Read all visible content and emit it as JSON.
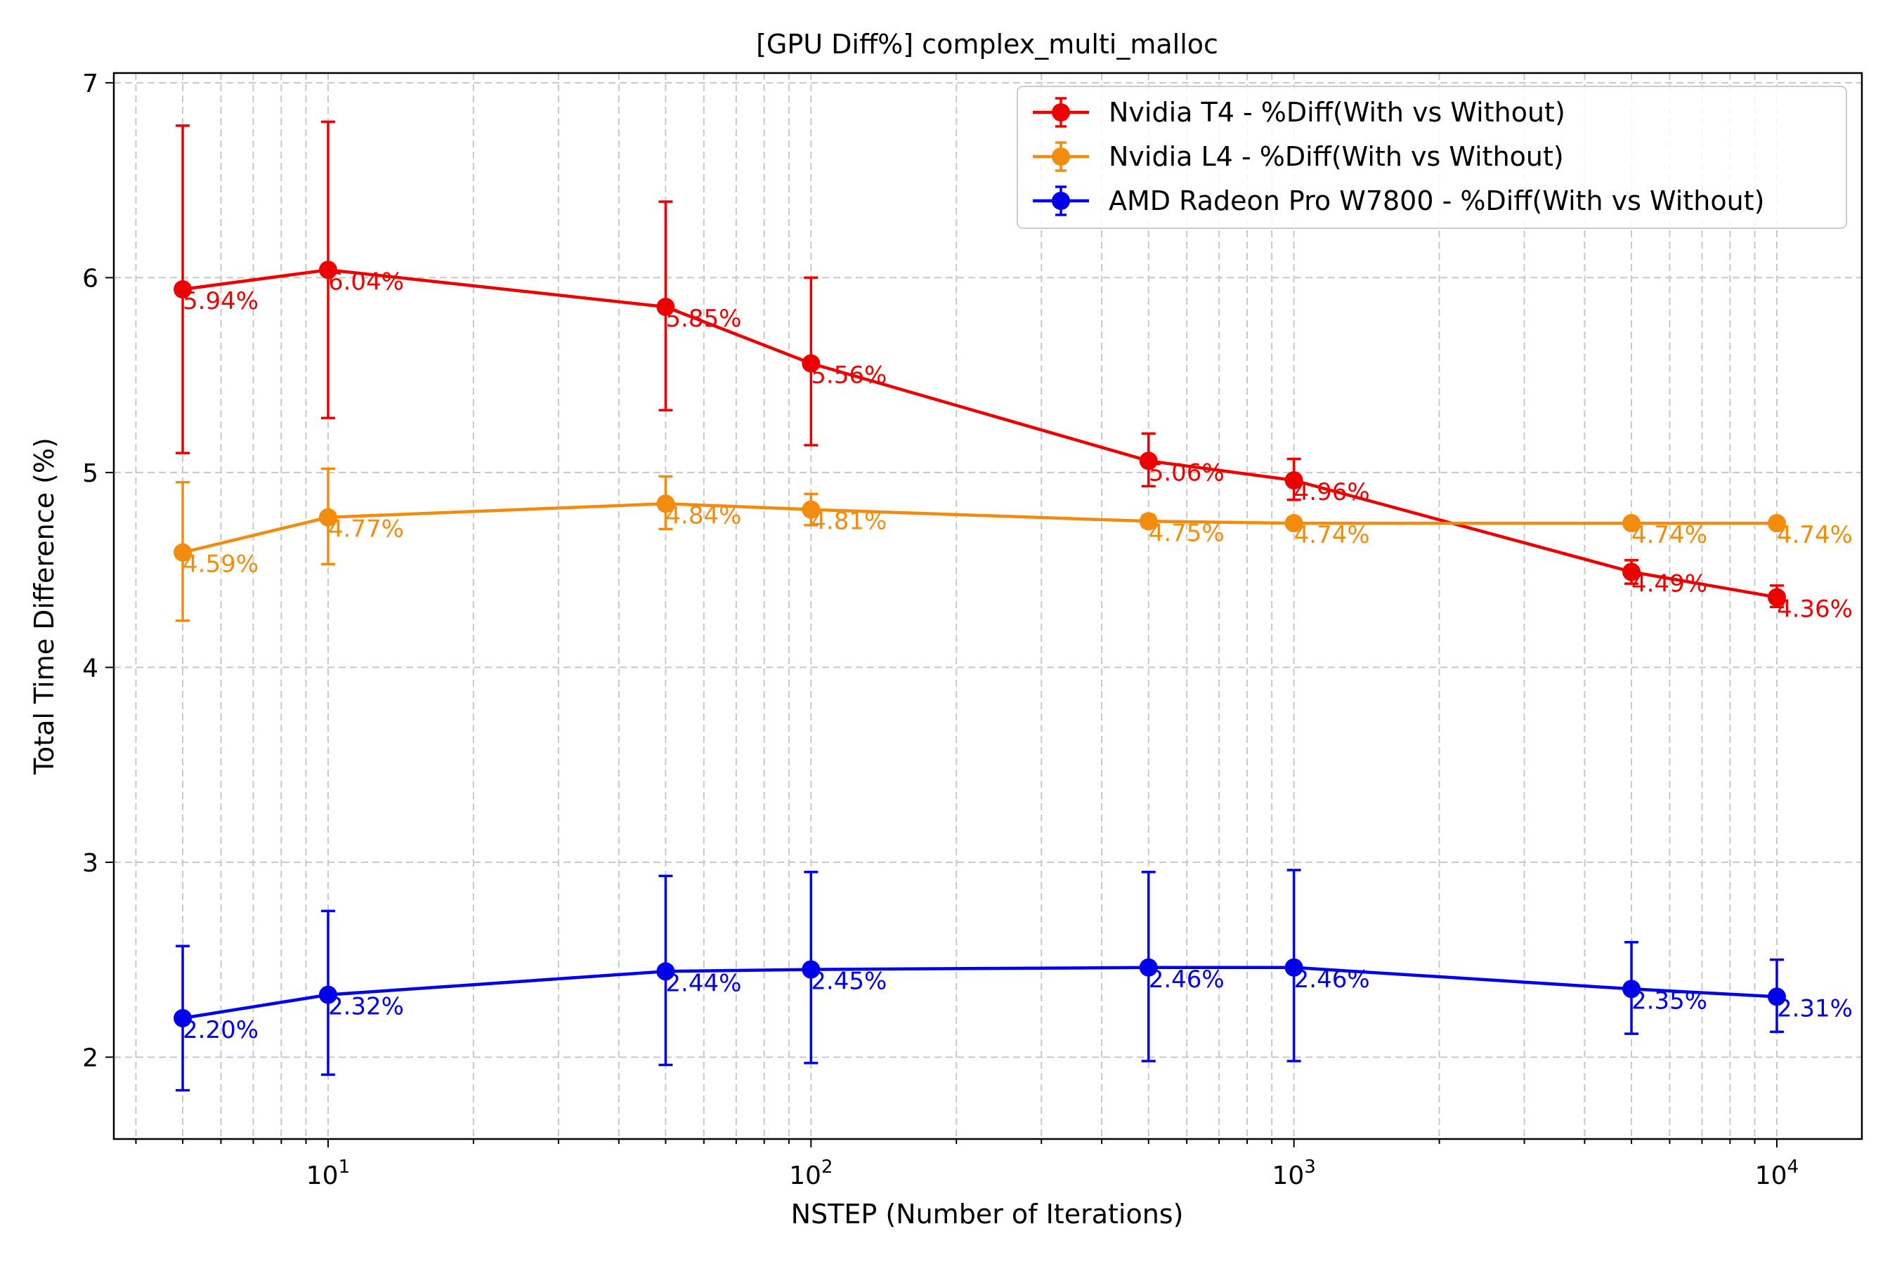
{
  "chart_data": {
    "type": "line",
    "title": "[GPU Diff%] complex_multi_malloc",
    "xlabel": "NSTEP (Number of Iterations)",
    "ylabel": "Total Time Difference (%)",
    "x_scale": "log",
    "xlim": [
      3.6,
      15000
    ],
    "ylim": [
      1.58,
      7.05
    ],
    "y_ticks": [
      2,
      3,
      4,
      5,
      6,
      7
    ],
    "x_ticks": [
      10,
      100,
      1000,
      10000
    ],
    "x_tick_labels": [
      {
        "base": "10",
        "exp": "1"
      },
      {
        "base": "10",
        "exp": "2"
      },
      {
        "base": "10",
        "exp": "3"
      },
      {
        "base": "10",
        "exp": "4"
      }
    ],
    "grid": true,
    "legend_position": "top-right",
    "x": [
      5,
      10,
      50,
      100,
      500,
      1000,
      5000,
      10000
    ],
    "series": [
      {
        "name": "Nvidia T4 - %Diff(With vs Without)",
        "color": "#ee0000",
        "values": [
          5.94,
          6.04,
          5.85,
          5.56,
          5.06,
          4.96,
          4.49,
          4.36
        ],
        "labels": [
          "5.94%",
          "6.04%",
          "5.85%",
          "5.56%",
          "5.06%",
          "4.96%",
          "4.49%",
          "4.36%"
        ],
        "err_low": [
          5.1,
          5.28,
          5.32,
          5.14,
          4.93,
          4.86,
          4.43,
          4.31
        ],
        "err_high": [
          6.78,
          6.8,
          6.39,
          6.0,
          5.2,
          5.07,
          4.55,
          4.42
        ]
      },
      {
        "name": "Nvidia L4 - %Diff(With vs Without)",
        "color": "#f28c0f",
        "values": [
          4.59,
          4.77,
          4.84,
          4.81,
          4.75,
          4.74,
          4.74,
          4.74
        ],
        "labels": [
          "4.59%",
          "4.77%",
          "4.84%",
          "4.81%",
          "4.75%",
          "4.74%",
          "4.74%",
          "4.74%"
        ],
        "err_low": [
          4.24,
          4.53,
          4.71,
          4.73,
          4.72,
          4.72,
          4.72,
          4.72
        ],
        "err_high": [
          4.95,
          5.02,
          4.98,
          4.89,
          4.78,
          4.76,
          4.76,
          4.76
        ]
      },
      {
        "name": "AMD Radeon Pro W7800 - %Diff(With vs Without)",
        "color": "#0000ee",
        "values": [
          2.2,
          2.32,
          2.44,
          2.45,
          2.46,
          2.46,
          2.35,
          2.31
        ],
        "labels": [
          "2.20%",
          "2.32%",
          "2.44%",
          "2.45%",
          "2.46%",
          "2.46%",
          "2.35%",
          "2.31%"
        ],
        "err_low": [
          1.83,
          1.91,
          1.96,
          1.97,
          1.98,
          1.98,
          2.12,
          2.13
        ],
        "err_high": [
          2.57,
          2.75,
          2.93,
          2.95,
          2.95,
          2.96,
          2.59,
          2.5
        ]
      }
    ]
  }
}
